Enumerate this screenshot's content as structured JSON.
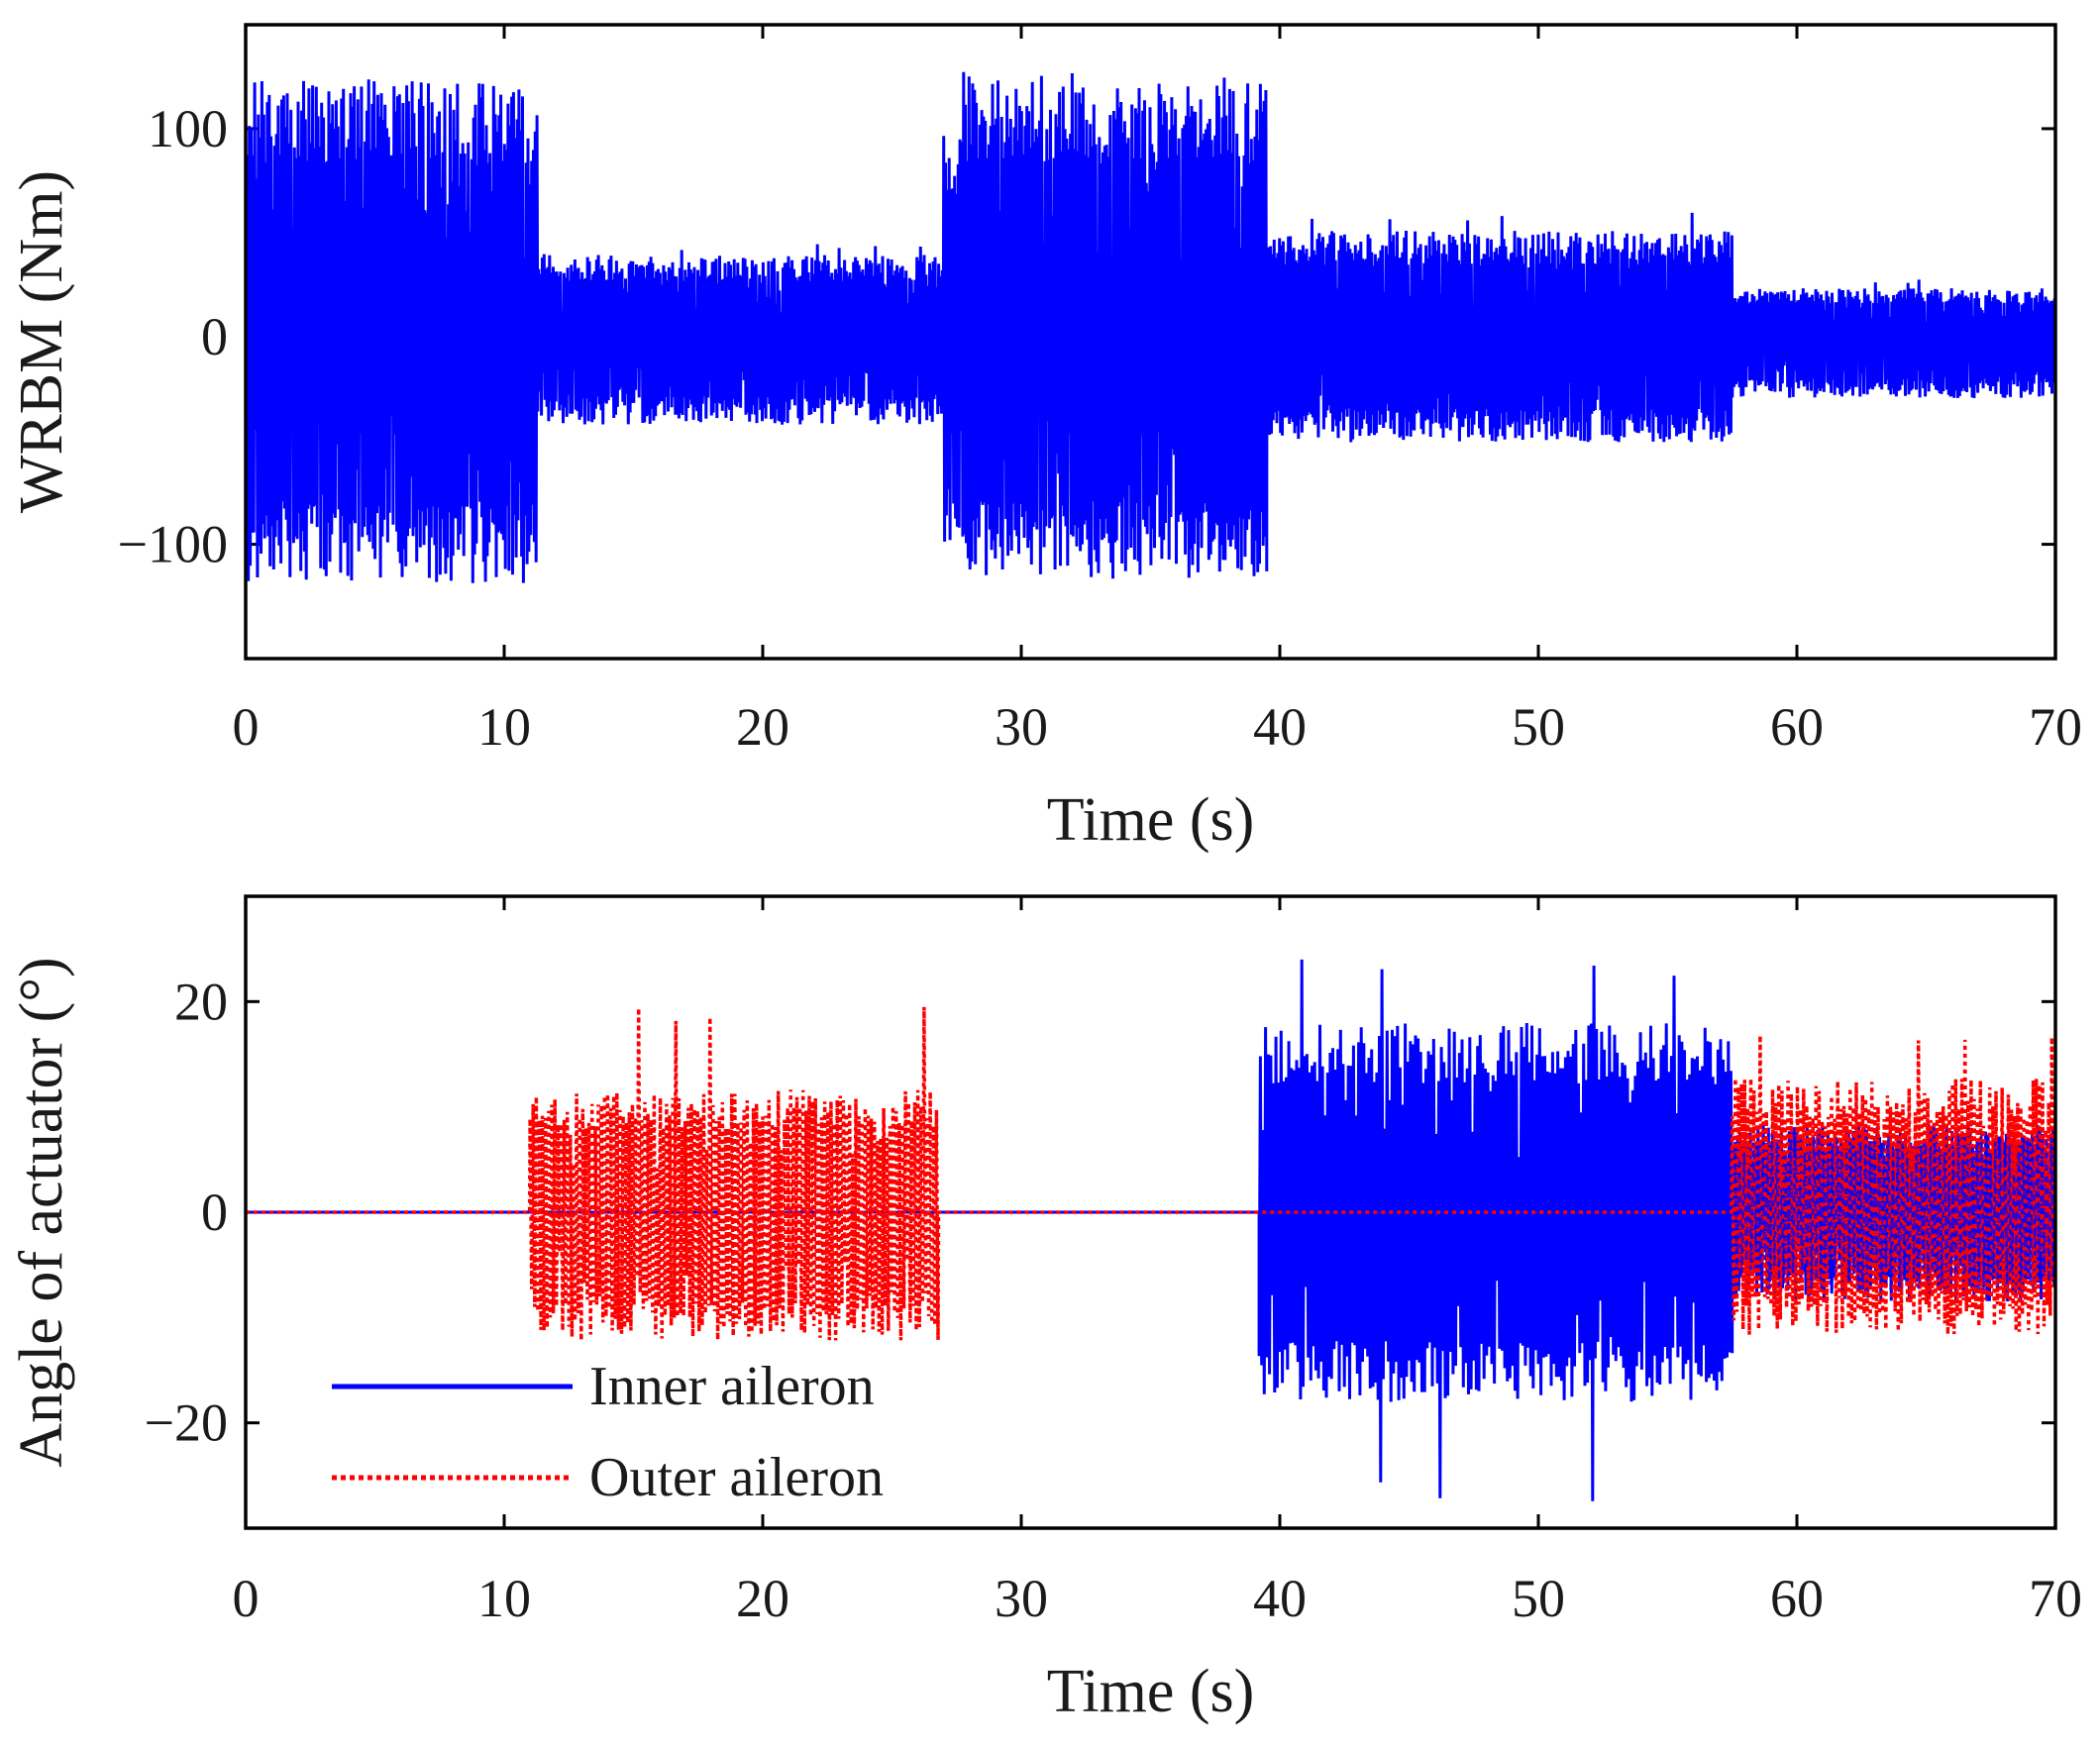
{
  "chart_data": [
    {
      "id": "top",
      "type": "line",
      "title": "",
      "xlabel": "Time (s)",
      "ylabel": "WRBM (Nm)",
      "xlim": [
        0,
        70
      ],
      "ylim": [
        -155,
        150
      ],
      "xticks": [
        0,
        10,
        20,
        30,
        40,
        50,
        60,
        70
      ],
      "yticks": [
        -100,
        0,
        100
      ],
      "ytick_labels": [
        "−100",
        "0",
        "100"
      ],
      "grid": false,
      "series": [
        {
          "name": "WRBM",
          "style": "solid",
          "color": "#0000ff",
          "envelope": [
            {
              "t_start": 0,
              "t_end": 11.3,
              "max": 116,
              "min": -112,
              "peak": 125
            },
            {
              "t_start": 11.3,
              "t_end": 12.0,
              "max": 40,
              "min": -40,
              "transition": true
            },
            {
              "t_start": 12.0,
              "t_end": 27.0,
              "max": 37,
              "min": -40,
              "peak": 45
            },
            {
              "t_start": 27.0,
              "t_end": 27.7,
              "max": 95,
              "min": -95,
              "transition": true
            },
            {
              "t_start": 27.7,
              "t_end": 39.5,
              "max": 115,
              "min": -110,
              "peak": 128
            },
            {
              "t_start": 39.5,
              "t_end": 40.3,
              "max": 48,
              "min": -45,
              "transition": true
            },
            {
              "t_start": 40.3,
              "t_end": 57.5,
              "max": 48,
              "min": -48,
              "peak": 60
            },
            {
              "t_start": 57.5,
              "t_end": 58.0,
              "max": 22,
              "min": -28,
              "transition": true
            },
            {
              "t_start": 58.0,
              "t_end": 70.0,
              "max": 22,
              "min": -28,
              "peak": 28
            }
          ]
        }
      ]
    },
    {
      "id": "bottom",
      "type": "line",
      "title": "",
      "xlabel": "Time (s)",
      "ylabel": "Angle of actuator (°)",
      "xlim": [
        0,
        70
      ],
      "ylim": [
        -30,
        30
      ],
      "xticks": [
        0,
        10,
        20,
        30,
        40,
        50,
        60,
        70
      ],
      "yticks": [
        -20,
        0,
        20
      ],
      "ytick_labels": [
        "−20",
        "0",
        "20"
      ],
      "grid": false,
      "legend_position": "bottom-left",
      "series": [
        {
          "name": "Inner aileron",
          "style": "solid",
          "color": "#0000ff",
          "envelope": [
            {
              "t_start": 0,
              "t_end": 39.2,
              "max": 0,
              "min": 0
            },
            {
              "t_start": 39.2,
              "t_end": 57.5,
              "max": 17,
              "min": -17,
              "peak": 24,
              "trough": -28
            },
            {
              "t_start": 57.5,
              "t_end": 70.0,
              "max": 8,
              "min": -8
            }
          ]
        },
        {
          "name": "Outer aileron",
          "style": "dotted",
          "color": "#ff0000",
          "envelope": [
            {
              "t_start": 0,
              "t_end": 11.0,
              "max": 0,
              "min": 0
            },
            {
              "t_start": 11.0,
              "t_end": 26.8,
              "max": 11,
              "min": -11.5,
              "peak": 19.5
            },
            {
              "t_start": 26.8,
              "t_end": 57.5,
              "max": 0,
              "min": 0
            },
            {
              "t_start": 57.5,
              "t_end": 70.0,
              "max": 12,
              "min": -11,
              "peak": 17
            }
          ]
        }
      ]
    }
  ]
}
